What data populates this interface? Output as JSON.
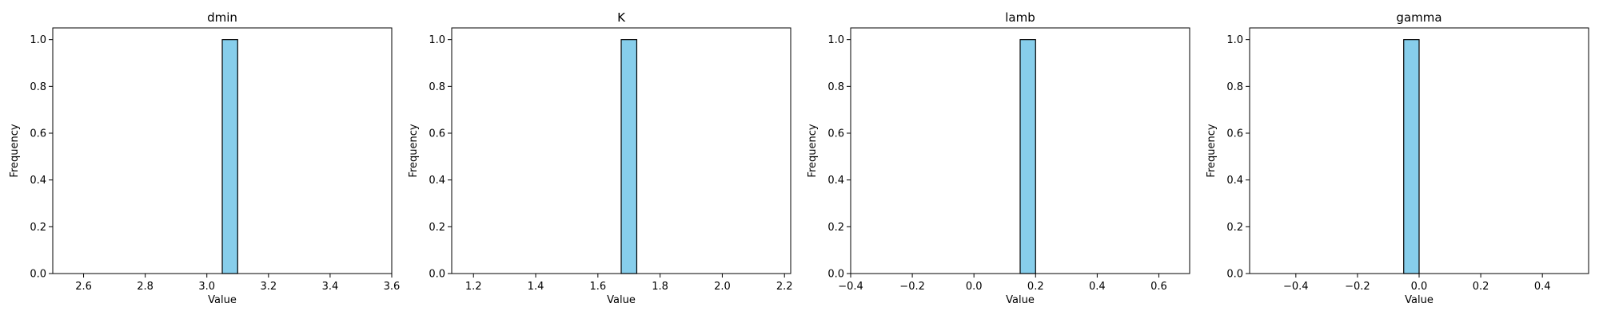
{
  "chart_data": [
    {
      "type": "bar",
      "title": "dmin",
      "xlabel": "Value",
      "ylabel": "Frequency",
      "xlim": [
        2.5,
        3.6
      ],
      "ylim": [
        0.0,
        1.05
      ],
      "xticks": [
        2.6,
        2.8,
        3.0,
        3.2,
        3.4,
        3.6
      ],
      "xtick_labels": [
        "2.6",
        "2.8",
        "3.0",
        "3.2",
        "3.4",
        "3.6"
      ],
      "yticks": [
        0.0,
        0.2,
        0.4,
        0.6,
        0.8,
        1.0
      ],
      "ytick_labels": [
        "0.0",
        "0.2",
        "0.4",
        "0.6",
        "0.8",
        "1.0"
      ],
      "bins": [
        {
          "x0": 3.05,
          "x1": 3.1,
          "value": 1
        }
      ],
      "bar_color": "#87CEEB",
      "edge_color": "#000000",
      "grid": false
    },
    {
      "type": "bar",
      "title": "K",
      "xlabel": "Value",
      "ylabel": "Frequency",
      "xlim": [
        1.13,
        2.22
      ],
      "ylim": [
        0.0,
        1.05
      ],
      "xticks": [
        1.2,
        1.4,
        1.6,
        1.8,
        2.0,
        2.2
      ],
      "xtick_labels": [
        "1.2",
        "1.4",
        "1.6",
        "1.8",
        "2.0",
        "2.2"
      ],
      "yticks": [
        0.0,
        0.2,
        0.4,
        0.6,
        0.8,
        1.0
      ],
      "ytick_labels": [
        "0.0",
        "0.2",
        "0.4",
        "0.6",
        "0.8",
        "1.0"
      ],
      "bins": [
        {
          "x0": 1.675,
          "x1": 1.725,
          "value": 1
        }
      ],
      "bar_color": "#87CEEB",
      "edge_color": "#000000",
      "grid": false
    },
    {
      "type": "bar",
      "title": "lamb",
      "xlabel": "Value",
      "ylabel": "Frequency",
      "xlim": [
        -0.4,
        0.7
      ],
      "ylim": [
        0.0,
        1.05
      ],
      "xticks": [
        -0.4,
        -0.2,
        0.0,
        0.2,
        0.4,
        0.6
      ],
      "xtick_labels": [
        "−0.4",
        "−0.2",
        "0.0",
        "0.2",
        "0.4",
        "0.6"
      ],
      "yticks": [
        0.0,
        0.2,
        0.4,
        0.6,
        0.8,
        1.0
      ],
      "ytick_labels": [
        "0.0",
        "0.2",
        "0.4",
        "0.6",
        "0.8",
        "1.0"
      ],
      "bins": [
        {
          "x0": 0.15,
          "x1": 0.2,
          "value": 1
        }
      ],
      "bar_color": "#87CEEB",
      "edge_color": "#000000",
      "grid": false
    },
    {
      "type": "bar",
      "title": "gamma",
      "xlabel": "Value",
      "ylabel": "Frequency",
      "xlim": [
        -0.55,
        0.55
      ],
      "ylim": [
        0.0,
        1.05
      ],
      "xticks": [
        -0.4,
        -0.2,
        0.0,
        0.2,
        0.4
      ],
      "xtick_labels": [
        "−0.4",
        "−0.2",
        "0.0",
        "0.2",
        "0.4"
      ],
      "yticks": [
        0.0,
        0.2,
        0.4,
        0.6,
        0.8,
        1.0
      ],
      "ytick_labels": [
        "0.0",
        "0.2",
        "0.4",
        "0.6",
        "0.8",
        "1.0"
      ],
      "bins": [
        {
          "x0": -0.05,
          "x1": 0.0,
          "value": 1
        }
      ],
      "bar_color": "#87CEEB",
      "edge_color": "#000000",
      "grid": false
    }
  ]
}
